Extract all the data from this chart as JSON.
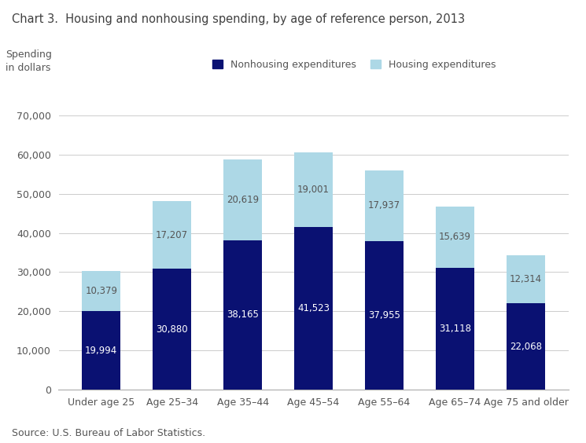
{
  "title": "Chart 3.  Housing and nonhousing spending, by age of reference person, 2013",
  "ylabel_line1": "Spending",
  "ylabel_line2": "in dollars",
  "source": "Source: U.S. Bureau of Labor Statistics.",
  "categories": [
    "Under age 25",
    "Age 25–34",
    "Age 35–44",
    "Age 45–54",
    "Age 55–64",
    "Age 65–74",
    "Age 75 and older"
  ],
  "nonhousing": [
    19994,
    30880,
    38165,
    41523,
    37955,
    31118,
    22068
  ],
  "housing": [
    10379,
    17207,
    20619,
    19001,
    17937,
    15639,
    12314
  ],
  "nonhousing_color": "#0A1172",
  "housing_color": "#ADD8E6",
  "ylim": [
    0,
    70000
  ],
  "yticks": [
    0,
    10000,
    20000,
    30000,
    40000,
    50000,
    60000,
    70000
  ],
  "legend_nonhousing": "Nonhousing expenditures",
  "legend_housing": "Housing expenditures",
  "title_fontsize": 10.5,
  "label_fontsize": 8.5,
  "tick_fontsize": 9,
  "source_fontsize": 9
}
